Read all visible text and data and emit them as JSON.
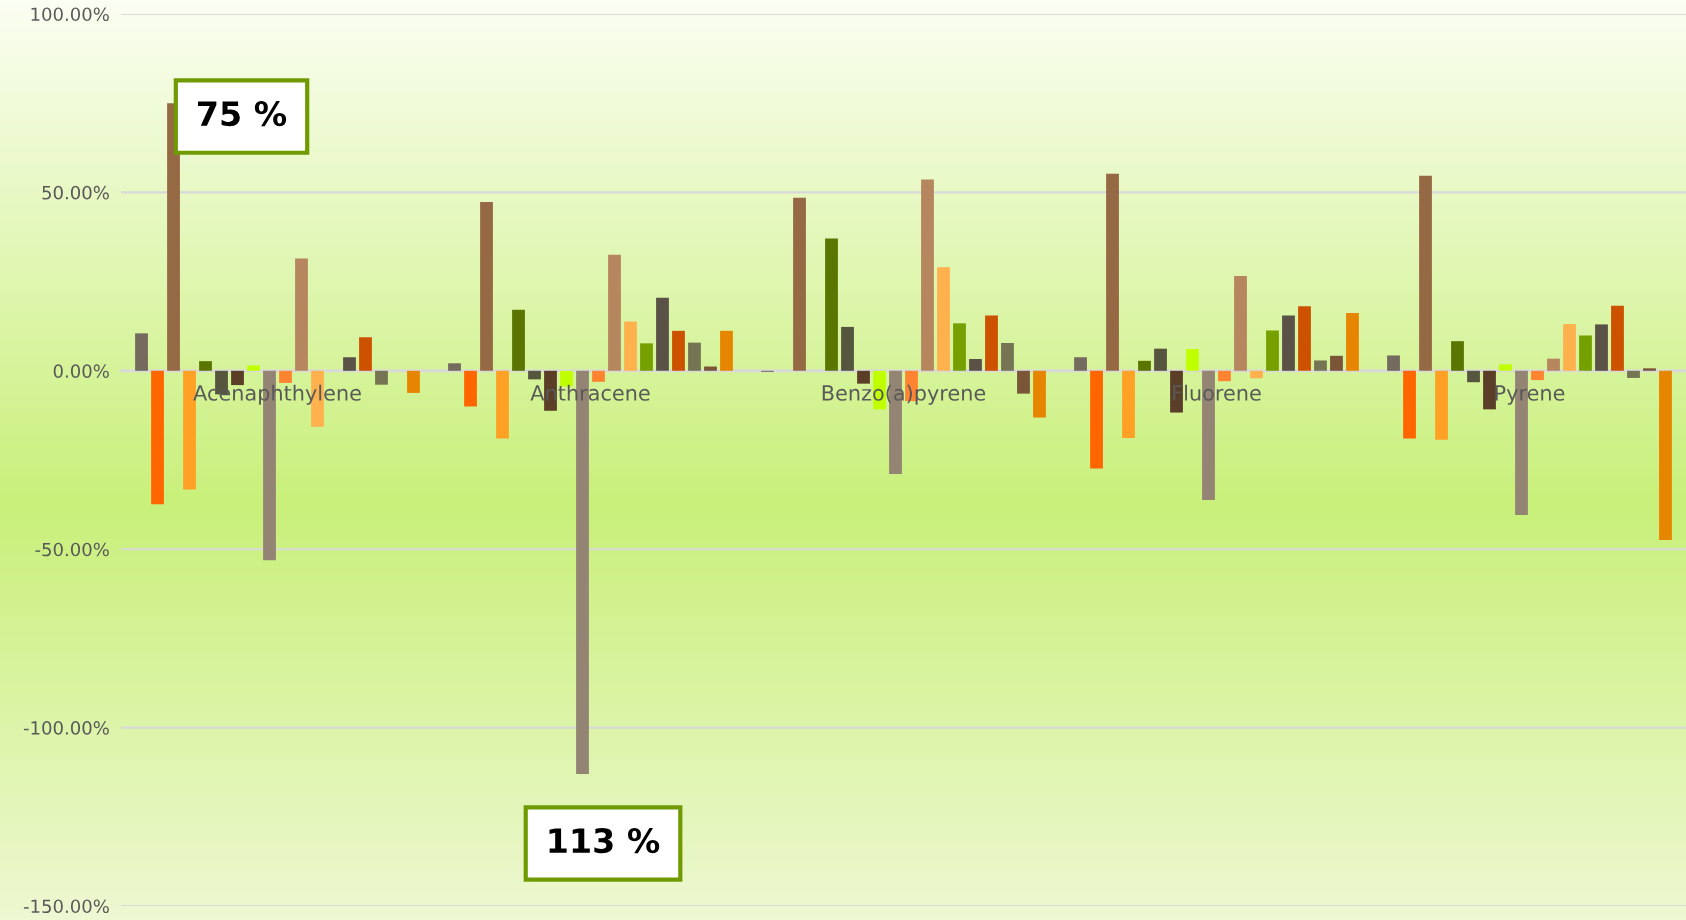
{
  "chart_data": {
    "type": "bar",
    "categories": [
      "Acenaphthylene",
      "Anthracene",
      "Benzo(a)pyrene",
      "Fluorene",
      "Pyrene"
    ],
    "series": [
      {
        "color": "#756a5e",
        "values": [
          10.5,
          2.1,
          -0.3,
          3.8,
          4.3
        ]
      },
      {
        "color": "#ff6600",
        "values": [
          -37.4,
          -10.0,
          0,
          -27.4,
          -19.0
        ]
      },
      {
        "color": "#956944",
        "values": [
          75,
          47.3,
          48.5,
          55.2,
          54.7
        ]
      },
      {
        "color": "#ffa125",
        "values": [
          -33.3,
          -19.0,
          0,
          -18.8,
          -19.3
        ]
      },
      {
        "color": "#5a7500",
        "values": [
          2.7,
          17.1,
          37.1,
          2.8,
          8.3
        ]
      },
      {
        "color": "#56563f",
        "values": [
          -6.6,
          -2.4,
          12.3,
          6.2,
          -3.2
        ]
      },
      {
        "color": "#5a3e28",
        "values": [
          -4.0,
          -11.2,
          -3.6,
          -11.7,
          -10.8
        ]
      },
      {
        "color": "#c0ff00",
        "values": [
          1.5,
          -4.4,
          -10.8,
          6.1,
          1.8
        ]
      },
      {
        "color": "#938473",
        "values": [
          -53.1,
          -113,
          -28.9,
          -36.2,
          -40.4
        ]
      },
      {
        "color": "#ff8432",
        "values": [
          -3.4,
          -3.1,
          -8.5,
          -2.9,
          -2.6
        ]
      },
      {
        "color": "#b6875f",
        "values": [
          31.5,
          32.5,
          53.6,
          26.6,
          3.4
        ]
      },
      {
        "color": "#ffb14e",
        "values": [
          -15.7,
          13.8,
          29.0,
          -2.1,
          13.1
        ]
      },
      {
        "color": "#76a000",
        "values": [
          0,
          7.7,
          13.3,
          11.3,
          9.9
        ]
      },
      {
        "color": "#5b5247",
        "values": [
          3.8,
          20.5,
          3.3,
          15.5,
          13.0
        ]
      },
      {
        "color": "#cc5200",
        "values": [
          9.4,
          11.2,
          15.5,
          18.1,
          18.2
        ]
      },
      {
        "color": "#757553",
        "values": [
          -3.9,
          7.9,
          7.8,
          2.9,
          -2.0
        ]
      },
      {
        "color": "#7a5538",
        "values": [
          0,
          1.2,
          -6.4,
          4.2,
          0.7
        ]
      },
      {
        "color": "#e68600",
        "values": [
          -6.2,
          11.2,
          -13.1,
          16.2,
          -47.4
        ]
      }
    ],
    "ylim": [
      -150,
      100
    ],
    "yticks": [
      {
        "value": 100,
        "label": "100.00%"
      },
      {
        "value": 50,
        "label": "50.00%"
      },
      {
        "value": 0,
        "label": "0.00%"
      },
      {
        "value": -50,
        "label": "-50.00%"
      },
      {
        "value": -100,
        "label": "-100.00%"
      },
      {
        "value": -150,
        "label": "-150.00%"
      }
    ],
    "grid": "y",
    "annotations": [
      "75 %",
      "113 %"
    ]
  }
}
